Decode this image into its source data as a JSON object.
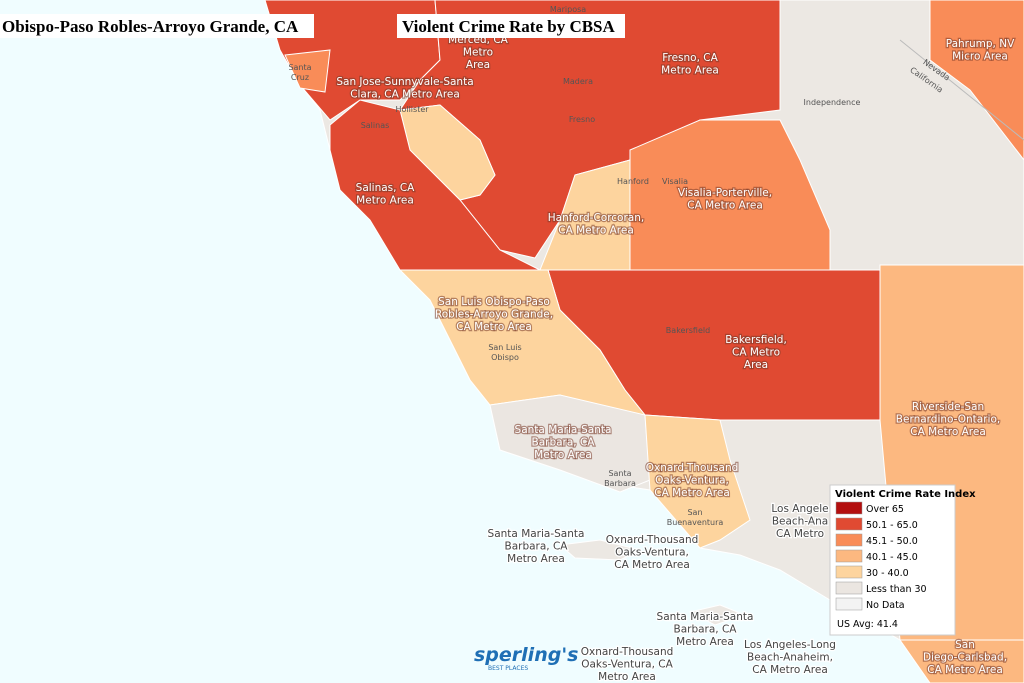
{
  "header": {
    "place": "Obispo-Paso Robles-Arroyo Grande, CA",
    "title": "Violent Crime Rate by CBSA"
  },
  "regions": [
    {
      "lines": [
        "San Jose-Sunnyvale-Santa",
        "Clara, CA Metro Area"
      ]
    },
    {
      "lines": [
        "Salinas, CA",
        "Metro Area"
      ]
    },
    {
      "lines": [
        "Fresno, CA",
        "Metro Area"
      ]
    },
    {
      "lines": [
        "Merced, CA",
        "Metro",
        "Area"
      ]
    },
    {
      "lines": [
        "Hanford-Corcoran,",
        "CA Metro Area"
      ]
    },
    {
      "lines": [
        "Visalia-Porterville,",
        "CA Metro Area"
      ]
    },
    {
      "lines": [
        "San Luis Obispo-Paso",
        "Robles-Arroyo Grande,",
        "CA Metro Area"
      ]
    },
    {
      "lines": [
        "Bakersfield,",
        "CA Metro",
        "Area"
      ]
    },
    {
      "lines": [
        "Santa Maria-Santa",
        "Barbara, CA",
        "Metro Area"
      ]
    },
    {
      "lines": [
        "Oxnard-Thousand",
        "Oaks-Ventura,",
        "CA Metro Area"
      ]
    },
    {
      "lines": [
        "Pahrump, NV",
        "Micro Area"
      ]
    },
    {
      "lines": [
        "Riverside-San",
        "Bernardino-Ontario,",
        "CA Metro Area"
      ]
    },
    {
      "lines": [
        "Santa Maria-Santa",
        "Barbara, CA",
        "Metro Area"
      ]
    },
    {
      "lines": [
        "Oxnard-Thousand",
        "Oaks-Ventura,",
        "CA Metro Area"
      ]
    },
    {
      "lines": [
        "Los Angeles-Long",
        "Beach-Anaheim,",
        "CA Metro Area"
      ]
    },
    {
      "lines": [
        "Santa Maria-Santa",
        "Barbara, CA",
        "Metro Area"
      ]
    },
    {
      "lines": [
        "Oxnard-Thousand",
        "Oaks-Ventura, CA",
        "Metro Area"
      ]
    },
    {
      "lines": [
        "Los Angele",
        "Beach-Ana",
        "CA Metro"
      ]
    },
    {
      "lines": [
        "San",
        "Diego-Carlsbad,",
        "CA Metro Area"
      ]
    }
  ],
  "places": [
    {
      "lines": [
        "Hollister"
      ]
    },
    {
      "lines": [
        "Salinas"
      ]
    },
    {
      "lines": [
        "Madera"
      ]
    },
    {
      "lines": [
        "Fresno"
      ]
    },
    {
      "lines": [
        "Mariposa"
      ]
    },
    {
      "lines": [
        "Independence"
      ]
    },
    {
      "lines": [
        "Hanford"
      ]
    },
    {
      "lines": [
        "Visalia"
      ]
    },
    {
      "lines": [
        "Bakersfield"
      ]
    },
    {
      "lines": [
        "San Luis",
        "Obispo"
      ]
    },
    {
      "lines": [
        "Santa",
        "Barbara"
      ]
    },
    {
      "lines": [
        "San",
        "Buenaventura"
      ]
    },
    {
      "lines": [
        "Santa",
        "Cruz"
      ]
    },
    {
      "lines": [
        "Nevada"
      ]
    },
    {
      "lines": [
        "California"
      ]
    }
  ],
  "legend": {
    "title": "Violent Crime Rate Index",
    "items": [
      {
        "label": "Over 65",
        "color": "#b30f0f"
      },
      {
        "label": "50.1 - 65.0",
        "color": "#e04a32"
      },
      {
        "label": "45.1 - 50.0",
        "color": "#f98c58"
      },
      {
        "label": "40.1 - 45.0",
        "color": "#fcb880"
      },
      {
        "label": "30 - 40.0",
        "color": "#fdd49e"
      },
      {
        "label": "Less than 30",
        "color": "#ebe6e1"
      },
      {
        "label": "No Data",
        "color": "#f3f3f3"
      }
    ],
    "note": "US Avg: 41.4"
  },
  "logo": {
    "name": "sperling's",
    "tagline": "BEST PLACES"
  }
}
